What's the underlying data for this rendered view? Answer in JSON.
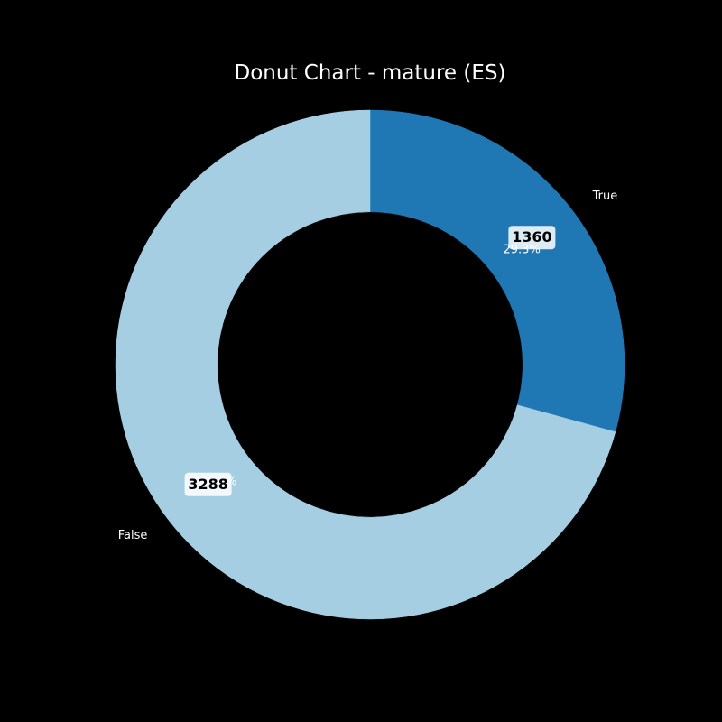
{
  "chart_data": {
    "type": "pie",
    "title": "Donut Chart - mature (ES)",
    "categories": [
      "True",
      "False"
    ],
    "values": [
      1360,
      3288
    ],
    "percent_labels": [
      "29.3%",
      "70.7%"
    ],
    "count_labels": [
      "1360",
      "3288"
    ],
    "colors": [
      "#1f78b4",
      "#a6cee3"
    ],
    "start_angle_deg": 90,
    "direction": "clockwise",
    "inner_radius_fraction": 0.6,
    "background": "#000000"
  }
}
